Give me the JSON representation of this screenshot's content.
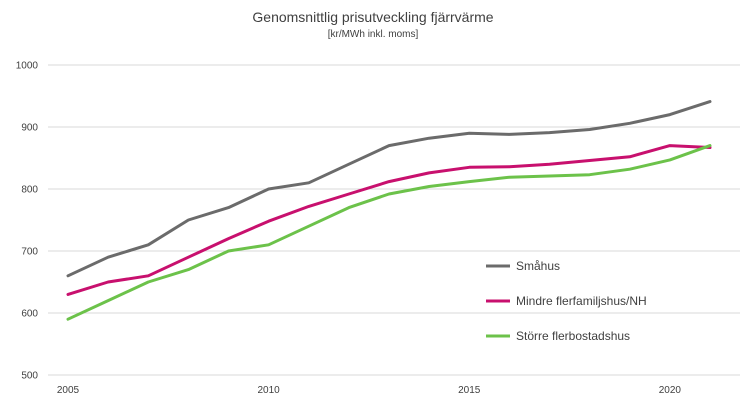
{
  "chart_data": {
    "type": "line",
    "title": "Genomsnittlig prisutveckling fjärrvärme",
    "subtitle": "[kr/MWh inkl. moms]",
    "xlabel": "",
    "ylabel": "",
    "x": [
      2005,
      2006,
      2007,
      2008,
      2009,
      2010,
      2011,
      2012,
      2013,
      2014,
      2015,
      2016,
      2017,
      2018,
      2019,
      2020,
      2021
    ],
    "xlim": [
      2005,
      2021
    ],
    "ylim": [
      500,
      1000
    ],
    "x_ticks": [
      "2005",
      "2010",
      "2015",
      "2020"
    ],
    "y_ticks": [
      "500",
      "600",
      "700",
      "800",
      "900",
      "1000"
    ],
    "grid": "horizontal",
    "legend_position": "center-right",
    "series": [
      {
        "name": "Småhus",
        "color": "#6b6b6b",
        "values": [
          660,
          690,
          710,
          750,
          770,
          800,
          810,
          840,
          870,
          882,
          890,
          888,
          891,
          896,
          906,
          920,
          941
        ]
      },
      {
        "name": "Mindre flerfamiljshus/NH",
        "color": "#c8106e",
        "values": [
          630,
          650,
          660,
          690,
          720,
          748,
          772,
          792,
          812,
          826,
          835,
          836,
          840,
          846,
          852,
          870,
          867
        ]
      },
      {
        "name": "Större flerbostadshus",
        "color": "#6cc24a",
        "values": [
          590,
          620,
          650,
          670,
          700,
          710,
          740,
          770,
          792,
          804,
          812,
          819,
          821,
          823,
          832,
          847,
          870
        ]
      }
    ]
  }
}
